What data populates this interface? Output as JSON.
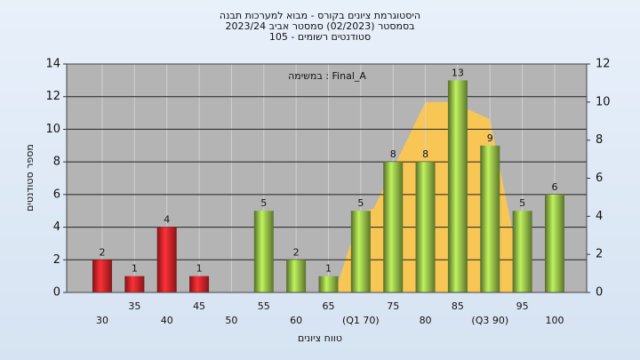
{
  "chart_data": {
    "type": "bar",
    "title": [
      "היסטוגרמת ציונים בקורס - מבוא למערכות תבנה",
      "בסמסטר  (02/2023)  סמסטר אביב 2023/24",
      "סטודנטים רשומים - 105"
    ],
    "annotation": "במשימה : Final_A",
    "xlabel": "טווח ציונים",
    "ylabel": "מספר סטודנטים",
    "categories": [
      "30",
      "35",
      "40",
      "45",
      "50",
      "55",
      "60",
      "65",
      "(Q1 70)",
      "75",
      "80",
      "85",
      "(Q3 90)",
      "95",
      "100"
    ],
    "values": [
      2,
      1,
      4,
      1,
      0,
      5,
      2,
      1,
      5,
      8,
      8,
      13,
      9,
      5,
      6
    ],
    "colors": [
      "#e0262b",
      "#e0262b",
      "#e0262b",
      "#e0262b",
      "#e0262b",
      "#98c24a",
      "#98c24a",
      "#98c24a",
      "#98c24a",
      "#98c24a",
      "#98c24a",
      "#98c24a",
      "#98c24a",
      "#98c24a",
      "#98c24a"
    ],
    "area": {
      "x": [
        66,
        70,
        72,
        80,
        84,
        90,
        93.5
      ],
      "values": [
        0,
        4.2,
        4.4,
        10,
        10,
        9.1,
        3.2
      ],
      "color": "#ffc84a",
      "axis": "y2"
    },
    "xlim": [
      30,
      100
    ],
    "ylim": [
      0,
      14
    ],
    "yticks": [
      0,
      2,
      4,
      6,
      8,
      10,
      12,
      14
    ],
    "y2lim": [
      0,
      12
    ],
    "y2ticks": [
      0,
      2,
      4,
      6,
      8,
      10,
      12
    ],
    "grid": true
  }
}
